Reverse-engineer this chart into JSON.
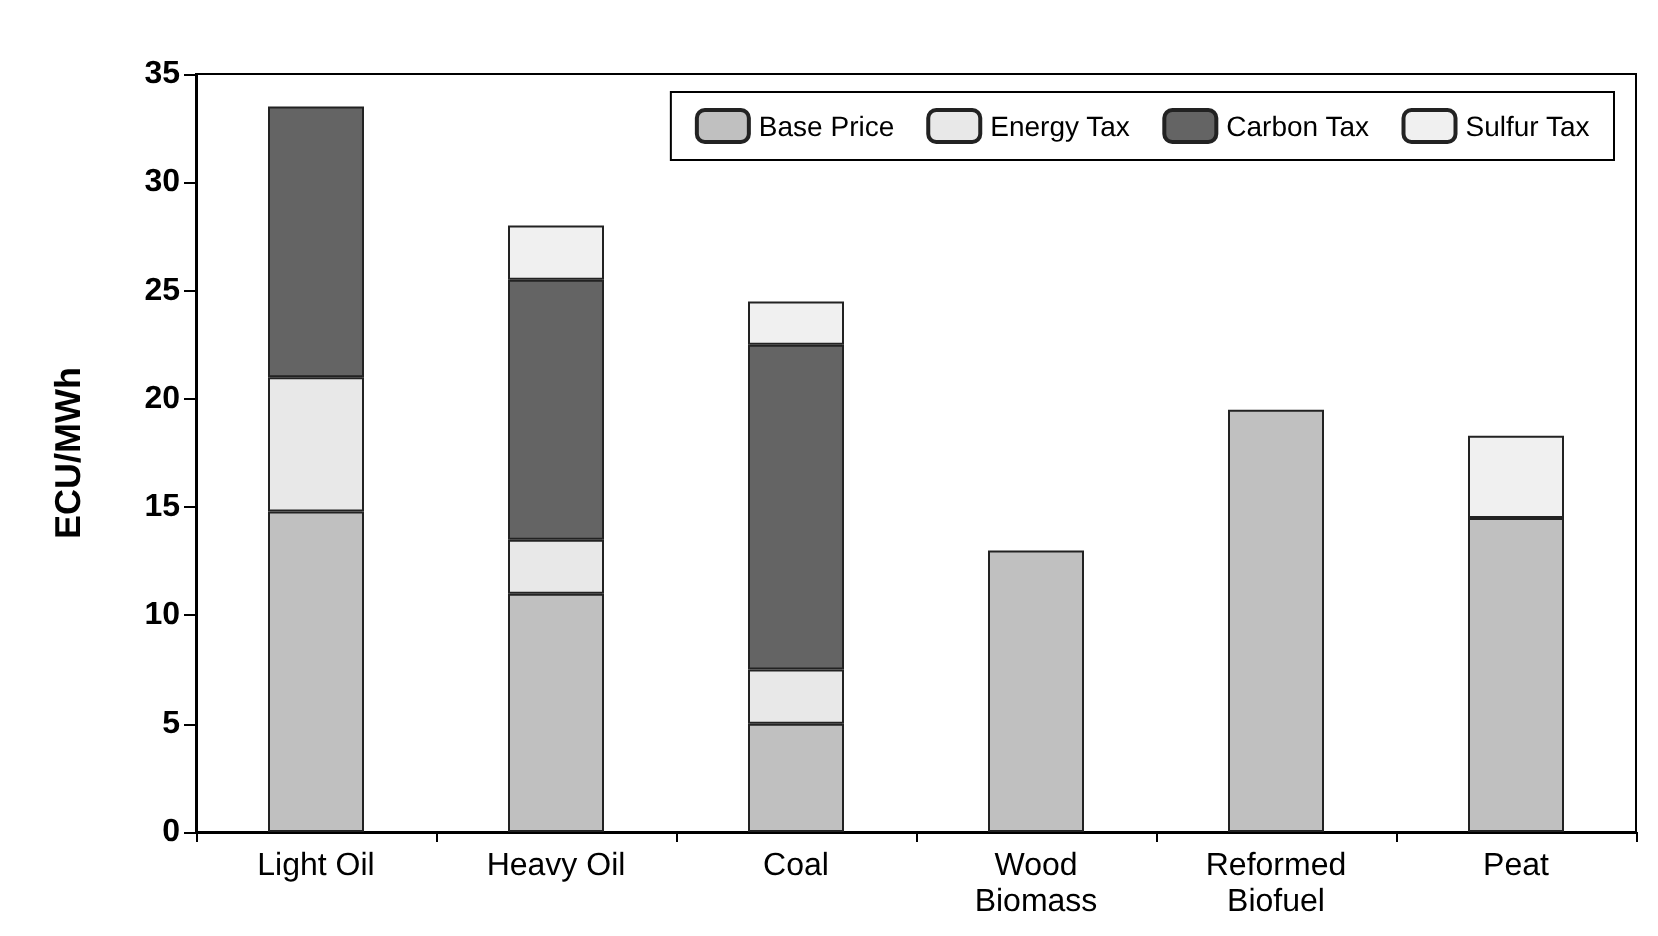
{
  "chart_data": {
    "type": "bar",
    "stacked": true,
    "ylabel": "ECU/MWh",
    "categories": [
      "Light Oil",
      "Heavy Oil",
      "Coal",
      "Wood\nBiomass",
      "Reformed\nBiofuel",
      "Peat"
    ],
    "series": [
      {
        "name": "Base Price",
        "color": "#c0c0c0",
        "values": [
          14.8,
          11,
          5,
          13,
          19.5,
          14.5
        ]
      },
      {
        "name": "Energy Tax",
        "color": "#e8e8e8",
        "values": [
          6.2,
          2.5,
          2.5,
          null,
          null,
          null
        ]
      },
      {
        "name": "Carbon Tax",
        "color": "#646464",
        "values": [
          12.5,
          12,
          15,
          null,
          null,
          null
        ]
      },
      {
        "name": "Sulfur Tax",
        "color": "#f0f0f0",
        "values": [
          null,
          2.5,
          2,
          null,
          null,
          3.8
        ]
      }
    ],
    "ylim": [
      0,
      35
    ],
    "yticks": [
      0,
      5,
      10,
      15,
      20,
      25,
      30,
      35
    ],
    "grid": false,
    "legend": "top right"
  }
}
